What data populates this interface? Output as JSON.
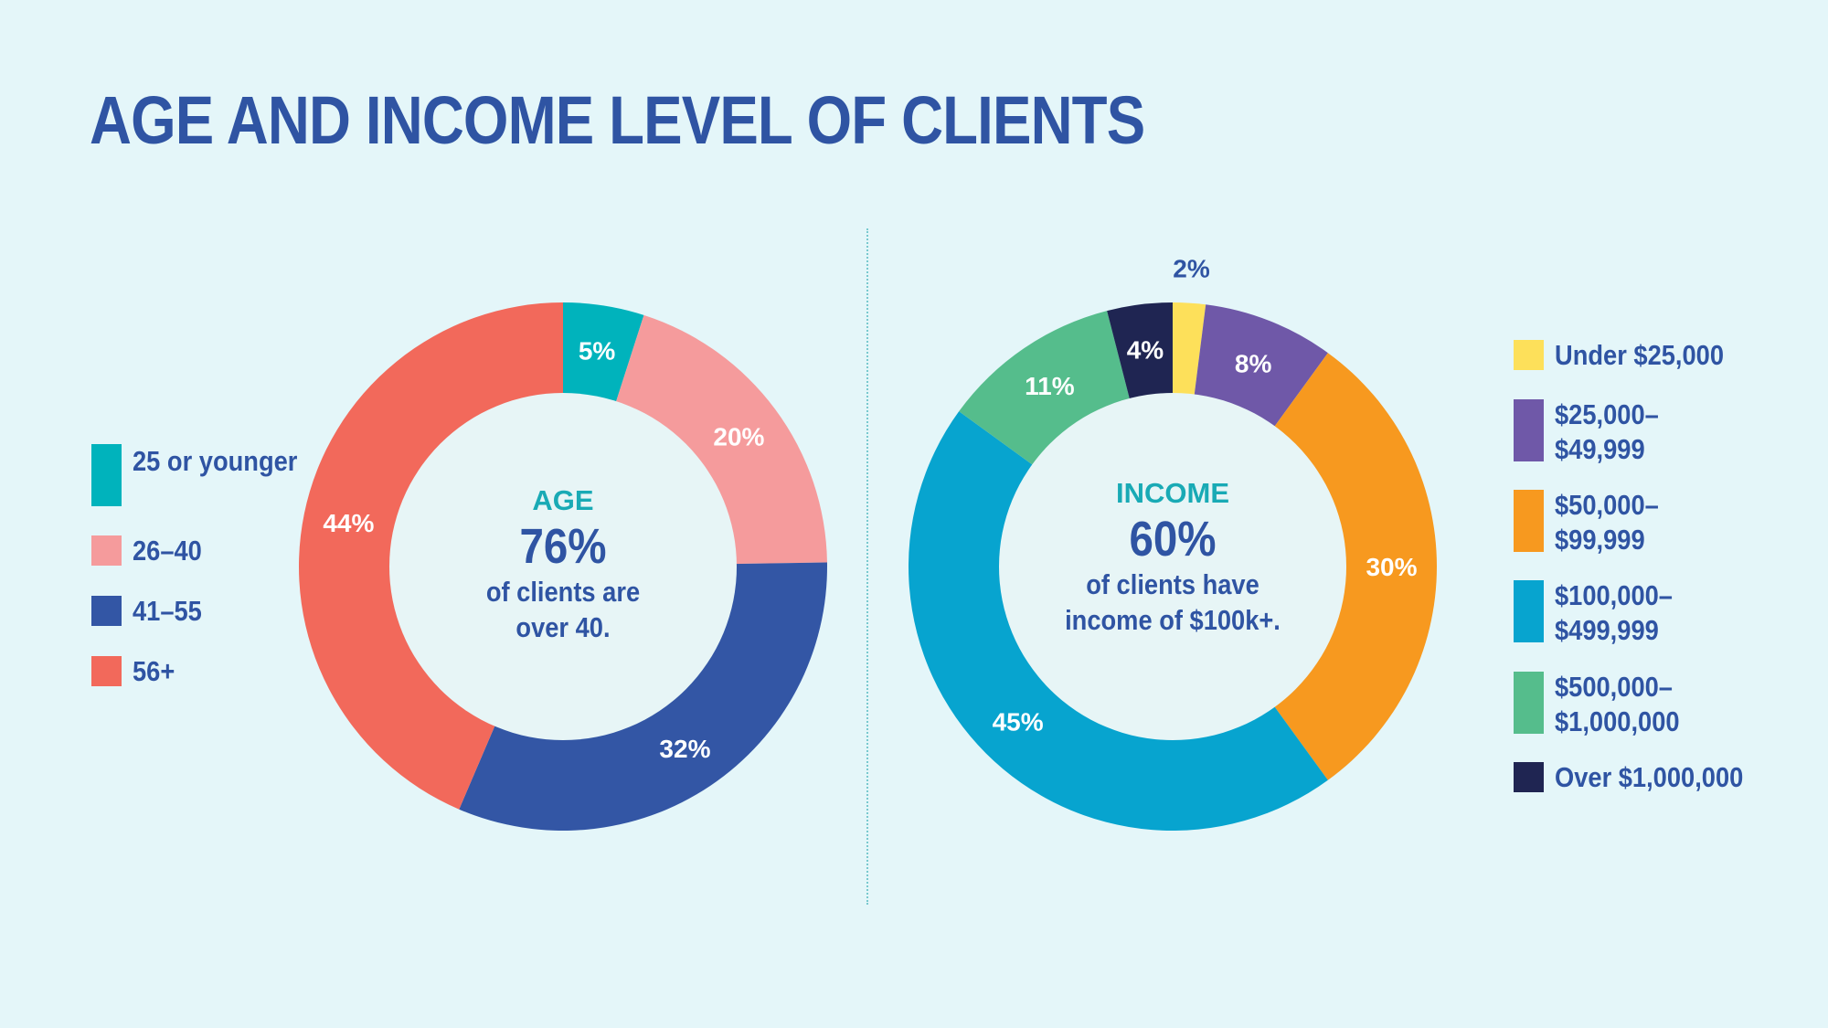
{
  "title": "AGE AND INCOME LEVEL OF CLIENTS",
  "chart_data": [
    {
      "type": "pie",
      "title": "AGE",
      "categories": [
        "25 or younger",
        "26–40",
        "41–55",
        "56+"
      ],
      "values": [
        5,
        20,
        32,
        44
      ],
      "labels": [
        "5%",
        "20%",
        "32%",
        "44%"
      ],
      "colors": [
        "#00b3bc",
        "#f59b9c",
        "#3356a5",
        "#f2695b"
      ],
      "center": {
        "kicker": "AGE",
        "big": "76%",
        "sub": "of clients are\nover 40."
      },
      "legend": {
        "placement": "left"
      }
    },
    {
      "type": "pie",
      "title": "INCOME",
      "categories": [
        "Under $25,000",
        "$25,000–\n$49,999",
        "$50,000–\n$99,999",
        "$100,000–\n$499,999",
        "$500,000–\n$1,000,000",
        "Over $1,000,000"
      ],
      "values": [
        2,
        8,
        30,
        45,
        11,
        4
      ],
      "labels": [
        "2%",
        "8%",
        "30%",
        "45%",
        "11%",
        "4%"
      ],
      "colors": [
        "#fde05a",
        "#6f58a8",
        "#f7991f",
        "#07a4cf",
        "#55bd8c",
        "#1f2552"
      ],
      "center": {
        "kicker": "INCOME",
        "big": "60%",
        "sub": "of clients have\nincome of $100k+."
      },
      "legend": {
        "placement": "right"
      }
    }
  ],
  "style": {
    "text_color": "#2f54a3",
    "accent_color": "#19aab5",
    "background": "#e4f6f9",
    "inner_fill": "#e7f5f6"
  }
}
